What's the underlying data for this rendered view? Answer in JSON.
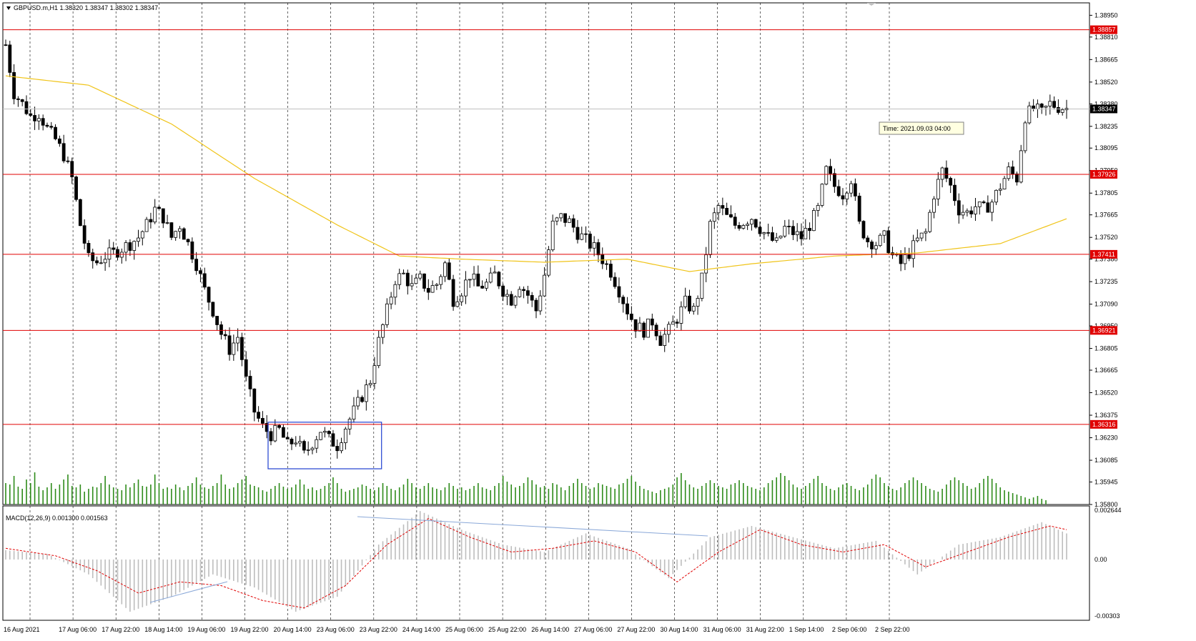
{
  "header": {
    "symbol_line": "GBPUSD.m,H1  1.38320 1.38347 1.38302 1.38347"
  },
  "tooltip": {
    "text": "Time: 2021.09.03 04:00"
  },
  "current_price": "1.38347",
  "colors": {
    "bull_candle": "#ffffff",
    "bear_candle": "#000000",
    "ma_line": "#f0c419",
    "level_line": "#e00000",
    "volume": "#2e8b1a",
    "macd_hist": "#bdbdbd",
    "macd_signal": "#e00000",
    "box": "#1f3fd0"
  },
  "chart_data": [
    {
      "type": "candlestick",
      "title": "GBPUSD.m,H1",
      "ylim": [
        1.358,
        1.3903
      ],
      "y_tick_labels": [
        "1.38950",
        "1.38810",
        "1.38665",
        "1.38520",
        "1.38380",
        "1.38235",
        "1.38095",
        "1.37950",
        "1.37805",
        "1.37665",
        "1.37520",
        "1.37380",
        "1.37235",
        "1.37090",
        "1.36950",
        "1.36805",
        "1.36665",
        "1.36520",
        "1.36375",
        "1.36230",
        "1.36085",
        "1.35945",
        "1.35800"
      ],
      "x_tick_labels": [
        "16 Aug 2021",
        "17 Aug 06:00",
        "17 Aug 22:00",
        "18 Aug 14:00",
        "19 Aug 06:00",
        "19 Aug 22:00",
        "20 Aug 14:00",
        "23 Aug 06:00",
        "23 Aug 22:00",
        "24 Aug 14:00",
        "25 Aug 06:00",
        "25 Aug 22:00",
        "26 Aug 14:00",
        "27 Aug 06:00",
        "27 Aug 22:00",
        "30 Aug 14:00",
        "31 Aug 06:00",
        "31 Aug 22:00",
        "1 Sep 14:00",
        "2 Sep 06:00",
        "2 Sep 22:00"
      ],
      "price_path": [
        [
          0,
          1.3876
        ],
        [
          2,
          1.3845
        ],
        [
          4,
          1.3838
        ],
        [
          6,
          1.383
        ],
        [
          8,
          1.3832
        ],
        [
          10,
          1.3822
        ],
        [
          12,
          1.3815
        ],
        [
          14,
          1.3805
        ],
        [
          16,
          1.379
        ],
        [
          18,
          1.376
        ],
        [
          20,
          1.3738
        ],
        [
          22,
          1.3736
        ],
        [
          24,
          1.374
        ],
        [
          26,
          1.3742
        ],
        [
          28,
          1.3745
        ],
        [
          30,
          1.3748
        ],
        [
          32,
          1.3752
        ],
        [
          34,
          1.376
        ],
        [
          36,
          1.377
        ],
        [
          38,
          1.3765
        ],
        [
          40,
          1.3752
        ],
        [
          42,
          1.376
        ],
        [
          44,
          1.3748
        ],
        [
          46,
          1.3735
        ],
        [
          48,
          1.3718
        ],
        [
          50,
          1.3705
        ],
        [
          52,
          1.369
        ],
        [
          54,
          1.368
        ],
        [
          56,
          1.3688
        ],
        [
          58,
          1.366
        ],
        [
          60,
          1.364
        ],
        [
          62,
          1.363
        ],
        [
          64,
          1.3625
        ],
        [
          66,
          1.3628
        ],
        [
          68,
          1.3618
        ],
        [
          70,
          1.3622
        ],
        [
          72,
          1.3612
        ],
        [
          74,
          1.362
        ],
        [
          76,
          1.3628
        ],
        [
          78,
          1.3622
        ],
        [
          80,
          1.3618
        ],
        [
          82,
          1.363
        ],
        [
          84,
          1.364
        ],
        [
          86,
          1.365
        ],
        [
          88,
          1.366
        ],
        [
          90,
          1.3685
        ],
        [
          92,
          1.3705
        ],
        [
          94,
          1.3725
        ],
        [
          96,
          1.3728
        ],
        [
          98,
          1.372
        ],
        [
          100,
          1.3725
        ],
        [
          102,
          1.3718
        ],
        [
          104,
          1.3722
        ],
        [
          106,
          1.3735
        ],
        [
          108,
          1.3712
        ],
        [
          110,
          1.3718
        ],
        [
          112,
          1.3728
        ],
        [
          114,
          1.372
        ],
        [
          116,
          1.3722
        ],
        [
          118,
          1.3728
        ],
        [
          120,
          1.3718
        ],
        [
          122,
          1.3712
        ],
        [
          124,
          1.3722
        ],
        [
          126,
          1.3715
        ],
        [
          128,
          1.3705
        ],
        [
          130,
          1.3728
        ],
        [
          132,
          1.376
        ],
        [
          134,
          1.3765
        ],
        [
          136,
          1.3762
        ],
        [
          138,
          1.3755
        ],
        [
          140,
          1.375
        ],
        [
          142,
          1.3745
        ],
        [
          144,
          1.3738
        ],
        [
          146,
          1.373
        ],
        [
          148,
          1.3718
        ],
        [
          150,
          1.3705
        ],
        [
          152,
          1.3695
        ],
        [
          154,
          1.3692
        ],
        [
          156,
          1.3698
        ],
        [
          158,
          1.3686
        ],
        [
          160,
          1.3692
        ],
        [
          162,
          1.37
        ],
        [
          164,
          1.371
        ],
        [
          166,
          1.3705
        ],
        [
          168,
          1.3725
        ],
        [
          170,
          1.376
        ],
        [
          172,
          1.3772
        ],
        [
          174,
          1.3765
        ],
        [
          176,
          1.376
        ],
        [
          178,
          1.3762
        ],
        [
          180,
          1.3765
        ],
        [
          182,
          1.3758
        ],
        [
          184,
          1.3752
        ],
        [
          186,
          1.3748
        ],
        [
          188,
          1.3758
        ],
        [
          190,
          1.3755
        ],
        [
          192,
          1.3752
        ],
        [
          194,
          1.376
        ],
        [
          196,
          1.377
        ],
        [
          198,
          1.3795
        ],
        [
          200,
          1.3785
        ],
        [
          202,
          1.378
        ],
        [
          204,
          1.379
        ],
        [
          206,
          1.376
        ],
        [
          208,
          1.375
        ],
        [
          210,
          1.3748
        ],
        [
          212,
          1.3752
        ],
        [
          214,
          1.374
        ],
        [
          216,
          1.3735
        ],
        [
          218,
          1.3742
        ],
        [
          220,
          1.375
        ],
        [
          222,
          1.3755
        ],
        [
          224,
          1.378
        ],
        [
          226,
          1.3795
        ],
        [
          228,
          1.3785
        ],
        [
          230,
          1.377
        ],
        [
          232,
          1.3768
        ],
        [
          234,
          1.3772
        ],
        [
          236,
          1.377
        ],
        [
          238,
          1.3775
        ],
        [
          240,
          1.3785
        ],
        [
          242,
          1.3795
        ],
        [
          244,
          1.379
        ],
        [
          246,
          1.383
        ],
        [
          248,
          1.3835
        ],
        [
          250,
          1.3832
        ],
        [
          252,
          1.3838
        ],
        [
          254,
          1.3836
        ],
        [
          256,
          1.3835
        ]
      ],
      "moving_average": [
        [
          0,
          1.3856
        ],
        [
          20,
          1.385
        ],
        [
          40,
          1.3825
        ],
        [
          60,
          1.379
        ],
        [
          80,
          1.376
        ],
        [
          95,
          1.374
        ],
        [
          110,
          1.3738
        ],
        [
          130,
          1.3736
        ],
        [
          150,
          1.3738
        ],
        [
          165,
          1.373
        ],
        [
          180,
          1.3735
        ],
        [
          200,
          1.374
        ],
        [
          220,
          1.3742
        ],
        [
          240,
          1.3748
        ],
        [
          256,
          1.3764
        ]
      ],
      "horizontal_levels": [
        "1.38857",
        "1.37926",
        "1.37411",
        "1.36921",
        "1.36316"
      ],
      "level_values": [
        1.38857,
        1.37926,
        1.37411,
        1.36921,
        1.36316
      ],
      "current_value": 1.38347,
      "box": {
        "x_start": 64,
        "x_end": 90,
        "price_low": 1.3603,
        "price_high": 1.3633
      },
      "volume_profile": [
        30,
        28,
        40,
        25,
        22,
        35,
        30,
        45,
        25,
        20,
        24,
        30,
        22,
        28,
        35,
        42,
        26,
        24,
        28,
        18,
        22,
        25,
        24,
        30,
        40,
        28,
        24,
        22,
        20,
        28,
        24,
        30,
        35,
        26,
        25,
        28,
        42,
        30,
        22,
        24,
        22,
        28,
        24,
        20,
        26,
        30,
        38,
        28,
        24,
        22,
        26,
        30,
        42,
        28,
        22,
        24,
        30,
        35,
        40,
        28,
        26,
        24,
        20,
        18,
        22,
        26,
        30,
        25,
        22,
        24,
        28,
        35,
        28,
        22,
        24,
        20,
        22,
        26,
        30,
        38,
        30,
        22,
        18,
        20,
        22,
        24,
        28,
        26,
        22,
        20,
        24,
        30,
        26,
        22,
        20,
        24,
        28,
        36,
        30,
        24,
        22,
        26,
        30,
        24,
        22,
        20,
        24,
        30,
        26,
        22,
        24,
        20,
        22,
        26,
        30,
        24,
        22,
        20,
        26,
        30,
        40,
        32,
        28,
        24,
        26,
        30,
        38,
        34,
        28,
        24,
        26,
        22,
        30,
        28,
        24,
        20,
        26,
        30,
        36,
        30,
        26,
        22,
        24,
        30,
        28,
        26,
        24,
        22,
        28,
        30,
        36,
        40,
        32,
        26,
        22,
        20,
        18,
        16,
        20,
        22,
        24,
        28,
        38,
        44,
        34,
        28,
        24,
        22,
        26,
        30,
        34,
        30,
        26,
        24,
        22,
        28,
        30,
        34,
        30,
        26,
        24,
        22,
        20,
        24,
        30,
        34,
        38,
        44,
        40,
        34,
        28,
        24,
        22,
        26,
        30,
        36,
        40,
        30,
        26,
        22,
        20,
        24,
        28,
        30,
        26,
        22,
        20,
        24,
        28,
        36,
        42,
        38,
        30,
        26,
        22,
        20,
        24,
        30,
        34,
        38,
        34,
        30,
        26,
        22,
        20,
        18,
        22,
        28,
        34,
        38,
        34,
        30,
        26,
        22,
        24,
        30,
        36,
        40,
        36,
        30,
        24,
        20,
        18,
        16,
        14,
        12,
        10,
        8,
        10,
        12,
        8,
        6
      ]
    },
    {
      "type": "bar",
      "title": "MACD(12,26,9) 0.001300 0.001563",
      "ylim": [
        -0.00303,
        0.002644
      ],
      "y_tick_labels": [
        "0.002644",
        "0.00",
        "-0.00303"
      ],
      "macd_path": [
        [
          0,
          0.0005
        ],
        [
          10,
          0.0003
        ],
        [
          20,
          -0.0008
        ],
        [
          30,
          -0.0028
        ],
        [
          40,
          -0.002
        ],
        [
          50,
          -0.0008
        ],
        [
          60,
          -0.0015
        ],
        [
          70,
          -0.0028
        ],
        [
          80,
          -0.002
        ],
        [
          90,
          0.0008
        ],
        [
          100,
          0.0026
        ],
        [
          110,
          0.0016
        ],
        [
          120,
          0.0008
        ],
        [
          130,
          0.0004
        ],
        [
          140,
          0.0014
        ],
        [
          150,
          0.0006
        ],
        [
          160,
          -0.001
        ],
        [
          170,
          0.0012
        ],
        [
          180,
          0.0018
        ],
        [
          190,
          0.0012
        ],
        [
          200,
          0.0006
        ],
        [
          210,
          0.001
        ],
        [
          220,
          -0.0008
        ],
        [
          230,
          0.0008
        ],
        [
          240,
          0.0012
        ],
        [
          250,
          0.002
        ],
        [
          256,
          0.0014
        ]
      ],
      "signal_path": [
        [
          0,
          0.0006
        ],
        [
          12,
          0.0002
        ],
        [
          22,
          -0.0006
        ],
        [
          32,
          -0.0018
        ],
        [
          42,
          -0.0012
        ],
        [
          52,
          -0.0014
        ],
        [
          62,
          -0.0022
        ],
        [
          72,
          -0.0026
        ],
        [
          82,
          -0.0014
        ],
        [
          92,
          0.0008
        ],
        [
          102,
          0.0022
        ],
        [
          112,
          0.0012
        ],
        [
          122,
          0.0004
        ],
        [
          132,
          0.0006
        ],
        [
          142,
          0.001
        ],
        [
          152,
          0.0004
        ],
        [
          162,
          -0.0012
        ],
        [
          172,
          0.0004
        ],
        [
          182,
          0.0016
        ],
        [
          192,
          0.0008
        ],
        [
          202,
          0.0004
        ],
        [
          212,
          0.0008
        ],
        [
          222,
          -0.0004
        ],
        [
          232,
          0.0004
        ],
        [
          242,
          0.0012
        ],
        [
          252,
          0.0018
        ],
        [
          256,
          0.0016
        ]
      ]
    }
  ]
}
